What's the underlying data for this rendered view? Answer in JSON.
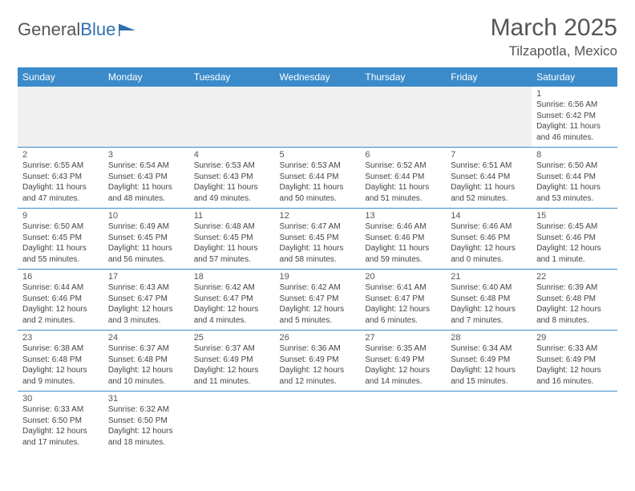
{
  "logo": {
    "text1": "General",
    "text2": "Blue"
  },
  "title": "March 2025",
  "location": "Tilzapotla, Mexico",
  "colors": {
    "header_bg": "#3b8bca",
    "header_text": "#ffffff",
    "border": "#3b8bca",
    "blank_bg": "#f0f0f0",
    "text": "#444444",
    "title_text": "#555555"
  },
  "days_of_week": [
    "Sunday",
    "Monday",
    "Tuesday",
    "Wednesday",
    "Thursday",
    "Friday",
    "Saturday"
  ],
  "weeks": [
    [
      null,
      null,
      null,
      null,
      null,
      null,
      {
        "n": "1",
        "sr": "Sunrise: 6:56 AM",
        "ss": "Sunset: 6:42 PM",
        "dl": "Daylight: 11 hours and 46 minutes."
      }
    ],
    [
      {
        "n": "2",
        "sr": "Sunrise: 6:55 AM",
        "ss": "Sunset: 6:43 PM",
        "dl": "Daylight: 11 hours and 47 minutes."
      },
      {
        "n": "3",
        "sr": "Sunrise: 6:54 AM",
        "ss": "Sunset: 6:43 PM",
        "dl": "Daylight: 11 hours and 48 minutes."
      },
      {
        "n": "4",
        "sr": "Sunrise: 6:53 AM",
        "ss": "Sunset: 6:43 PM",
        "dl": "Daylight: 11 hours and 49 minutes."
      },
      {
        "n": "5",
        "sr": "Sunrise: 6:53 AM",
        "ss": "Sunset: 6:44 PM",
        "dl": "Daylight: 11 hours and 50 minutes."
      },
      {
        "n": "6",
        "sr": "Sunrise: 6:52 AM",
        "ss": "Sunset: 6:44 PM",
        "dl": "Daylight: 11 hours and 51 minutes."
      },
      {
        "n": "7",
        "sr": "Sunrise: 6:51 AM",
        "ss": "Sunset: 6:44 PM",
        "dl": "Daylight: 11 hours and 52 minutes."
      },
      {
        "n": "8",
        "sr": "Sunrise: 6:50 AM",
        "ss": "Sunset: 6:44 PM",
        "dl": "Daylight: 11 hours and 53 minutes."
      }
    ],
    [
      {
        "n": "9",
        "sr": "Sunrise: 6:50 AM",
        "ss": "Sunset: 6:45 PM",
        "dl": "Daylight: 11 hours and 55 minutes."
      },
      {
        "n": "10",
        "sr": "Sunrise: 6:49 AM",
        "ss": "Sunset: 6:45 PM",
        "dl": "Daylight: 11 hours and 56 minutes."
      },
      {
        "n": "11",
        "sr": "Sunrise: 6:48 AM",
        "ss": "Sunset: 6:45 PM",
        "dl": "Daylight: 11 hours and 57 minutes."
      },
      {
        "n": "12",
        "sr": "Sunrise: 6:47 AM",
        "ss": "Sunset: 6:45 PM",
        "dl": "Daylight: 11 hours and 58 minutes."
      },
      {
        "n": "13",
        "sr": "Sunrise: 6:46 AM",
        "ss": "Sunset: 6:46 PM",
        "dl": "Daylight: 11 hours and 59 minutes."
      },
      {
        "n": "14",
        "sr": "Sunrise: 6:46 AM",
        "ss": "Sunset: 6:46 PM",
        "dl": "Daylight: 12 hours and 0 minutes."
      },
      {
        "n": "15",
        "sr": "Sunrise: 6:45 AM",
        "ss": "Sunset: 6:46 PM",
        "dl": "Daylight: 12 hours and 1 minute."
      }
    ],
    [
      {
        "n": "16",
        "sr": "Sunrise: 6:44 AM",
        "ss": "Sunset: 6:46 PM",
        "dl": "Daylight: 12 hours and 2 minutes."
      },
      {
        "n": "17",
        "sr": "Sunrise: 6:43 AM",
        "ss": "Sunset: 6:47 PM",
        "dl": "Daylight: 12 hours and 3 minutes."
      },
      {
        "n": "18",
        "sr": "Sunrise: 6:42 AM",
        "ss": "Sunset: 6:47 PM",
        "dl": "Daylight: 12 hours and 4 minutes."
      },
      {
        "n": "19",
        "sr": "Sunrise: 6:42 AM",
        "ss": "Sunset: 6:47 PM",
        "dl": "Daylight: 12 hours and 5 minutes."
      },
      {
        "n": "20",
        "sr": "Sunrise: 6:41 AM",
        "ss": "Sunset: 6:47 PM",
        "dl": "Daylight: 12 hours and 6 minutes."
      },
      {
        "n": "21",
        "sr": "Sunrise: 6:40 AM",
        "ss": "Sunset: 6:48 PM",
        "dl": "Daylight: 12 hours and 7 minutes."
      },
      {
        "n": "22",
        "sr": "Sunrise: 6:39 AM",
        "ss": "Sunset: 6:48 PM",
        "dl": "Daylight: 12 hours and 8 minutes."
      }
    ],
    [
      {
        "n": "23",
        "sr": "Sunrise: 6:38 AM",
        "ss": "Sunset: 6:48 PM",
        "dl": "Daylight: 12 hours and 9 minutes."
      },
      {
        "n": "24",
        "sr": "Sunrise: 6:37 AM",
        "ss": "Sunset: 6:48 PM",
        "dl": "Daylight: 12 hours and 10 minutes."
      },
      {
        "n": "25",
        "sr": "Sunrise: 6:37 AM",
        "ss": "Sunset: 6:49 PM",
        "dl": "Daylight: 12 hours and 11 minutes."
      },
      {
        "n": "26",
        "sr": "Sunrise: 6:36 AM",
        "ss": "Sunset: 6:49 PM",
        "dl": "Daylight: 12 hours and 12 minutes."
      },
      {
        "n": "27",
        "sr": "Sunrise: 6:35 AM",
        "ss": "Sunset: 6:49 PM",
        "dl": "Daylight: 12 hours and 14 minutes."
      },
      {
        "n": "28",
        "sr": "Sunrise: 6:34 AM",
        "ss": "Sunset: 6:49 PM",
        "dl": "Daylight: 12 hours and 15 minutes."
      },
      {
        "n": "29",
        "sr": "Sunrise: 6:33 AM",
        "ss": "Sunset: 6:49 PM",
        "dl": "Daylight: 12 hours and 16 minutes."
      }
    ],
    [
      {
        "n": "30",
        "sr": "Sunrise: 6:33 AM",
        "ss": "Sunset: 6:50 PM",
        "dl": "Daylight: 12 hours and 17 minutes."
      },
      {
        "n": "31",
        "sr": "Sunrise: 6:32 AM",
        "ss": "Sunset: 6:50 PM",
        "dl": "Daylight: 12 hours and 18 minutes."
      },
      null,
      null,
      null,
      null,
      null
    ]
  ]
}
